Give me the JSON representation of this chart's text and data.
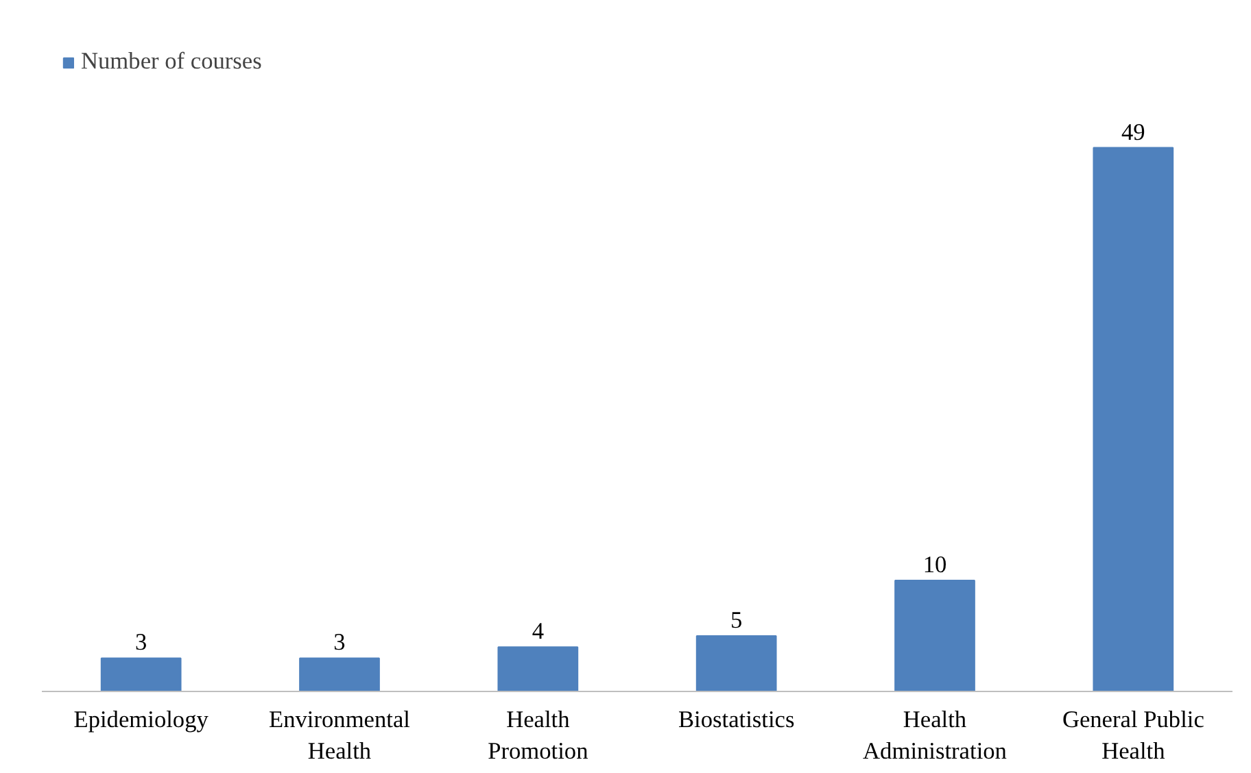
{
  "chart_data": {
    "type": "bar",
    "categories": [
      "Epidemiology",
      "Environmental Health",
      "Health Promotion",
      "Biostatistics",
      "Health Administration",
      "General Public Health"
    ],
    "series": [
      {
        "name": "Number of courses",
        "color": "#4f81bd",
        "values": [
          3,
          3,
          4,
          5,
          10,
          49
        ]
      }
    ],
    "data_labels": true,
    "legend": "top left",
    "grid": false
  }
}
